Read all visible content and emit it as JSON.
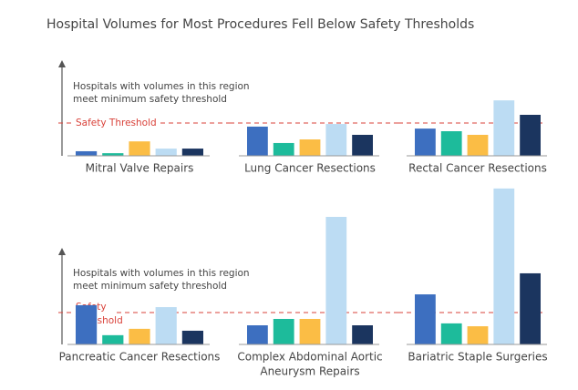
{
  "title": "Hospital Volumes for Most Procedures Fell Below Safety Thresholds",
  "annotations": {
    "top": {
      "lines": [
        "Hospitals with volumes in this region",
        "meet minimum safety threshold"
      ],
      "threshold_label": [
        "Safety Threshold"
      ]
    },
    "bottom": {
      "lines": [
        "Hospitals with volumes in this region",
        "meet minimum safety threshold"
      ],
      "threshold_label": [
        "Safety",
        "Threshold"
      ]
    }
  },
  "bar_colors": [
    "#3d6fc0",
    "#1dbb9b",
    "#fbbd45",
    "#bcdcf3",
    "#1b355f"
  ],
  "threshold_color": "#d9423a",
  "chart_data": [
    {
      "type": "bar",
      "title": [
        "Mitral Valve Repairs"
      ],
      "values": [
        14,
        8,
        44,
        22,
        22
      ],
      "threshold": 100
    },
    {
      "type": "bar",
      "title": [
        "Lung Cancer Resections"
      ],
      "values": [
        89,
        39,
        50,
        97,
        64
      ],
      "threshold": 100
    },
    {
      "type": "bar",
      "title": [
        "Rectal Cancer Resections"
      ],
      "values": [
        83,
        75,
        64,
        169,
        125
      ],
      "threshold": 100
    },
    {
      "type": "bar",
      "title": [
        "Pancreatic Cancer Resections"
      ],
      "values": [
        123,
        29,
        49,
        117,
        43
      ],
      "threshold": 100
    },
    {
      "type": "bar",
      "title": [
        "Complex Abdominal Aortic",
        "Aneurysm Repairs"
      ],
      "values": [
        60,
        80,
        80,
        400,
        60
      ],
      "threshold": 100
    },
    {
      "type": "bar",
      "title": [
        "Bariatric Staple Surgeries"
      ],
      "values": [
        157,
        66,
        57,
        489,
        223
      ],
      "threshold": 100
    }
  ]
}
